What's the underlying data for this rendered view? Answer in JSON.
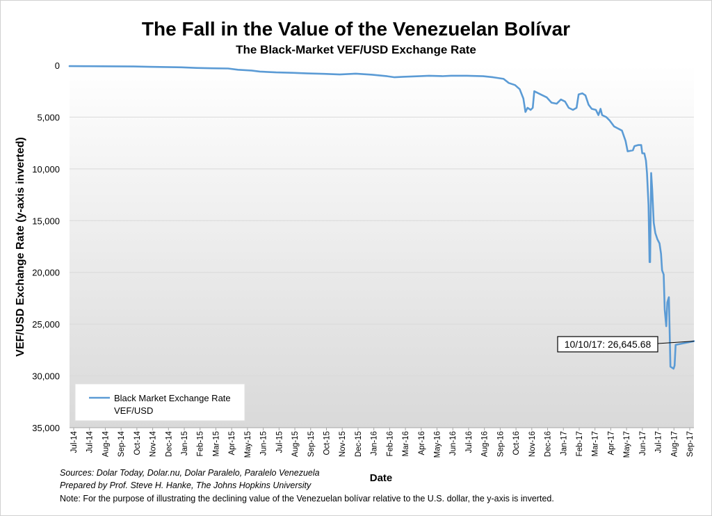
{
  "chart_data": {
    "type": "line",
    "title": "The Fall in the Value of the Venezuelan Bolívar",
    "subtitle": "The Black-Market VEF/USD Exchange Rate",
    "xlabel": "Date",
    "ylabel": "VEF/USD Exchange  Rate (y-axis inverted)",
    "y_inverted": true,
    "ylim": [
      0,
      35000
    ],
    "y_ticks": [
      0,
      5000,
      10000,
      15000,
      20000,
      25000,
      30000,
      35000
    ],
    "y_tick_labels": [
      "0",
      "5,000",
      "10,000",
      "15,000",
      "20,000",
      "25,000",
      "30,000",
      "35,000"
    ],
    "x_range": [
      "2014-07-01",
      "2017-10-10"
    ],
    "x_tick_labels": [
      "Jul-14",
      "Jul-14",
      "Aug-14",
      "Sep-14",
      "Oct-14",
      "Nov-14",
      "Dec-14",
      "Jan-15",
      "Feb-15",
      "Mar-15",
      "Apr-15",
      "May-15",
      "Jun-15",
      "Jul-15",
      "Aug-15",
      "Sep-15",
      "Oct-15",
      "Nov-15",
      "Dec-15",
      "Jan-16",
      "Feb-16",
      "Mar-16",
      "Apr-16",
      "May-16",
      "Jun-16",
      "Jul-16",
      "Aug-16",
      "Sep-16",
      "Oct-16",
      "Nov-16",
      "Dec-16",
      "Jan-17",
      "Feb-17",
      "Mar-17",
      "Apr-17",
      "May-17",
      "Jun-17",
      "Jul-17",
      "Aug-17",
      "Sep-17"
    ],
    "grid": true,
    "legend_position": "bottom-left",
    "series": [
      {
        "name": "Black Market Exchange Rate VEF/USD",
        "color": "#5b9bd5",
        "points": [
          [
            "2014-07-01",
            75
          ],
          [
            "2014-08-01",
            80
          ],
          [
            "2014-09-01",
            85
          ],
          [
            "2014-10-01",
            95
          ],
          [
            "2014-11-01",
            110
          ],
          [
            "2014-12-01",
            140
          ],
          [
            "2015-01-01",
            160
          ],
          [
            "2015-02-01",
            190
          ],
          [
            "2015-03-01",
            250
          ],
          [
            "2015-04-01",
            280
          ],
          [
            "2015-05-01",
            300
          ],
          [
            "2015-05-20",
            420
          ],
          [
            "2015-06-15",
            500
          ],
          [
            "2015-07-01",
            600
          ],
          [
            "2015-08-01",
            680
          ],
          [
            "2015-09-01",
            720
          ],
          [
            "2015-10-01",
            780
          ],
          [
            "2015-11-01",
            820
          ],
          [
            "2015-12-01",
            880
          ],
          [
            "2016-01-01",
            800
          ],
          [
            "2016-02-01",
            900
          ],
          [
            "2016-03-01",
            1050
          ],
          [
            "2016-03-15",
            1150
          ],
          [
            "2016-04-01",
            1100
          ],
          [
            "2016-05-01",
            1050
          ],
          [
            "2016-05-20",
            1000
          ],
          [
            "2016-06-15",
            1040
          ],
          [
            "2016-07-01",
            1000
          ],
          [
            "2016-08-01",
            1000
          ],
          [
            "2016-09-01",
            1050
          ],
          [
            "2016-09-20",
            1150
          ],
          [
            "2016-10-10",
            1300
          ],
          [
            "2016-10-20",
            1700
          ],
          [
            "2016-11-01",
            1900
          ],
          [
            "2016-11-10",
            2300
          ],
          [
            "2016-11-17",
            3200
          ],
          [
            "2016-11-21",
            4500
          ],
          [
            "2016-11-25",
            4100
          ],
          [
            "2016-12-01",
            4300
          ],
          [
            "2016-12-05",
            4100
          ],
          [
            "2016-12-08",
            2500
          ],
          [
            "2016-12-20",
            2800
          ],
          [
            "2017-01-01",
            3100
          ],
          [
            "2017-01-10",
            3600
          ],
          [
            "2017-01-20",
            3700
          ],
          [
            "2017-01-28",
            3300
          ],
          [
            "2017-02-05",
            3500
          ],
          [
            "2017-02-12",
            4100
          ],
          [
            "2017-02-20",
            4300
          ],
          [
            "2017-02-27",
            4100
          ],
          [
            "2017-03-03",
            2800
          ],
          [
            "2017-03-10",
            2700
          ],
          [
            "2017-03-16",
            2900
          ],
          [
            "2017-03-22",
            3800
          ],
          [
            "2017-03-28",
            4200
          ],
          [
            "2017-04-05",
            4300
          ],
          [
            "2017-04-10",
            4800
          ],
          [
            "2017-04-14",
            4200
          ],
          [
            "2017-04-17",
            4800
          ],
          [
            "2017-04-25",
            5000
          ],
          [
            "2017-05-01",
            5300
          ],
          [
            "2017-05-10",
            5900
          ],
          [
            "2017-05-25",
            6300
          ],
          [
            "2017-06-01",
            7300
          ],
          [
            "2017-06-05",
            8300
          ],
          [
            "2017-06-15",
            8200
          ],
          [
            "2017-06-18",
            7800
          ],
          [
            "2017-06-25",
            7700
          ],
          [
            "2017-07-01",
            7700
          ],
          [
            "2017-07-03",
            8500
          ],
          [
            "2017-07-07",
            8500
          ],
          [
            "2017-07-10",
            9200
          ],
          [
            "2017-07-12",
            10400
          ],
          [
            "2017-07-15",
            13500
          ],
          [
            "2017-07-17",
            19000
          ],
          [
            "2017-07-18",
            19000
          ],
          [
            "2017-07-20",
            10400
          ],
          [
            "2017-07-22",
            12000
          ],
          [
            "2017-07-25",
            15200
          ],
          [
            "2017-07-28",
            16200
          ],
          [
            "2017-08-01",
            16800
          ],
          [
            "2017-08-05",
            17200
          ],
          [
            "2017-08-08",
            18200
          ],
          [
            "2017-08-10",
            19800
          ],
          [
            "2017-08-13",
            20200
          ],
          [
            "2017-08-15",
            23600
          ],
          [
            "2017-08-18",
            25200
          ],
          [
            "2017-08-20",
            22900
          ],
          [
            "2017-08-23",
            22400
          ],
          [
            "2017-08-26",
            29100
          ],
          [
            "2017-09-01",
            29300
          ],
          [
            "2017-09-03",
            29000
          ],
          [
            "2017-09-05",
            27000
          ],
          [
            "2017-10-10",
            26645.68
          ]
        ]
      }
    ],
    "annotations": [
      {
        "date": "2017-10-10",
        "value": 26645.68,
        "label": "10/10/17: 26,645.68"
      }
    ]
  },
  "notes": {
    "sources": "Sources: Dolar Today, Dolar.nu, Dolar Paralelo, Paralelo Venezuela",
    "prepared_by": "Prepared by Prof. Steve H. Hanke, The Johns Hopkins University",
    "note": "Note: For the purpose of illustrating the declining value of the Venezuelan bolívar relative to the U.S. dollar, the y-axis is inverted."
  },
  "legend": {
    "line1": "Black Market Exchange Rate",
    "line2": "VEF/USD"
  }
}
